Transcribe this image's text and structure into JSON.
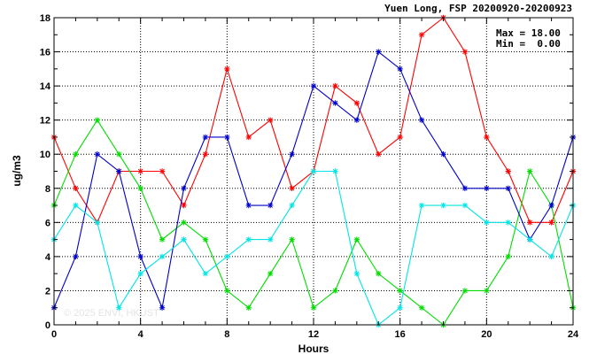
{
  "chart_data": {
    "type": "line",
    "title": "Yuen Long, FSP 20200920-20200923",
    "stats": [
      "Max = 18.00",
      "Min =  0.00"
    ],
    "xlabel": "Hours",
    "ylabel": "ug/m3",
    "xlim": [
      0,
      24
    ],
    "ylim": [
      0,
      18
    ],
    "xticks": [
      0,
      4,
      8,
      12,
      16,
      20,
      24
    ],
    "yticks": [
      0,
      2,
      4,
      6,
      8,
      10,
      12,
      14,
      16,
      18
    ],
    "grid": true,
    "watermark": "© 2025  ENVI, HKUST",
    "x": [
      0,
      1,
      2,
      3,
      4,
      5,
      6,
      7,
      8,
      9,
      10,
      11,
      12,
      13,
      14,
      15,
      16,
      17,
      18,
      19,
      20,
      21,
      22,
      23,
      24
    ],
    "series": [
      {
        "color": "#ff0000",
        "values": [
          11,
          8,
          6,
          9,
          9,
          9,
          7,
          10,
          15,
          11,
          12,
          8,
          9,
          14,
          13,
          10,
          11,
          17,
          18,
          16,
          11,
          9,
          6,
          6,
          9
        ]
      },
      {
        "color": "#00dd00",
        "values": [
          7,
          10,
          12,
          10,
          8,
          5,
          6,
          5,
          2,
          1,
          3,
          5,
          1,
          2,
          5,
          3,
          2,
          1,
          0,
          2,
          2,
          4,
          9,
          7,
          1
        ]
      },
      {
        "color": "#0000cc",
        "values": [
          1,
          4,
          10,
          9,
          4,
          1,
          8,
          11,
          11,
          7,
          7,
          10,
          14,
          13,
          12,
          16,
          15,
          12,
          10,
          8,
          8,
          8,
          5,
          7,
          11
        ]
      },
      {
        "color": "#00e5e5",
        "values": [
          5,
          7,
          6,
          1,
          3,
          4,
          5,
          3,
          4,
          5,
          5,
          7,
          9,
          9,
          3,
          0,
          1,
          7,
          7,
          7,
          6,
          6,
          5,
          4,
          7
        ]
      }
    ]
  }
}
